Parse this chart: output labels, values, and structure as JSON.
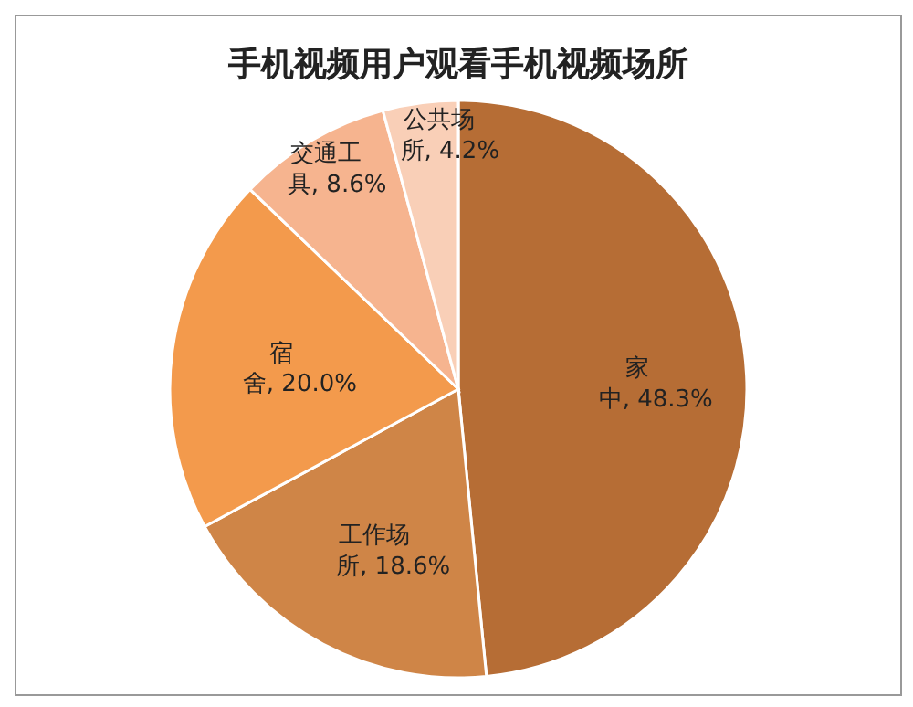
{
  "chart_data": {
    "type": "pie",
    "title": "手机视频用户观看手机视频场所",
    "categories": [
      "家中",
      "工作场所",
      "宿舍",
      "交通工具",
      "公共场所"
    ],
    "values": [
      48.3,
      18.6,
      20.0,
      8.6,
      4.2
    ],
    "colors": [
      "#b66d35",
      "#cf8547",
      "#f39a4c",
      "#f6b48f",
      "#f9cfb7"
    ],
    "value_labels": [
      ", 48.3%",
      ", 18.6%",
      ", 20.0%",
      ", 8.6%",
      ", 4.2%"
    ],
    "legend": false
  }
}
